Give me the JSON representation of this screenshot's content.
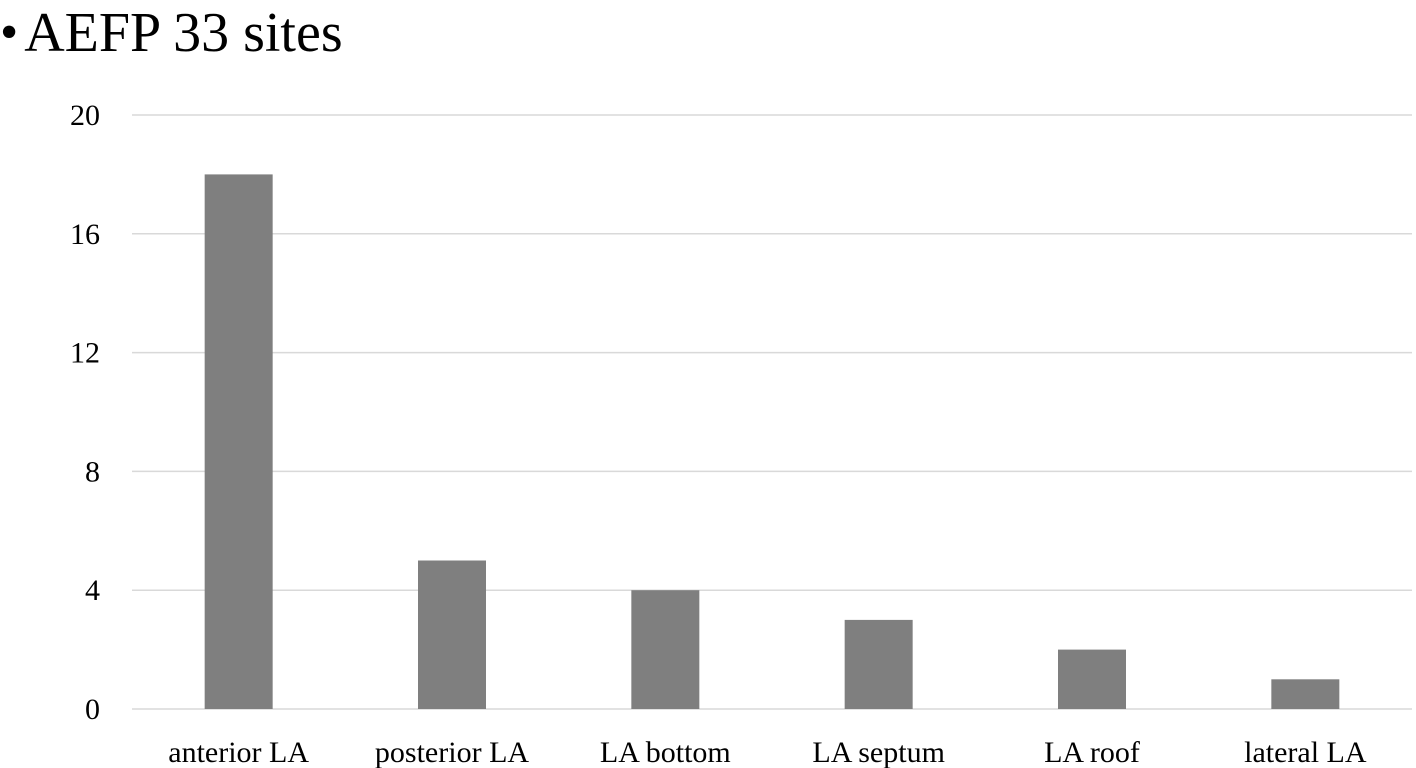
{
  "title": {
    "bullet": "•",
    "text": "AEFP 33 sites"
  },
  "chart_data": {
    "type": "bar",
    "title": "AEFP 33 sites",
    "categories": [
      "anterior LA",
      "posterior LA",
      "LA bottom",
      "LA septum",
      "LA roof",
      "lateral LA"
    ],
    "values": [
      18,
      5,
      4,
      3,
      2,
      1
    ],
    "xlabel": "",
    "ylabel": "",
    "ylim": [
      0,
      20
    ],
    "yticks": [
      0,
      4,
      8,
      12,
      16,
      20
    ],
    "ytick_labels": [
      "0",
      "4",
      "8",
      "12",
      "16",
      "20"
    ],
    "grid": true,
    "legend": "none",
    "bar_color": "#7f7f7f",
    "grid_color": "#d9d9d9"
  }
}
